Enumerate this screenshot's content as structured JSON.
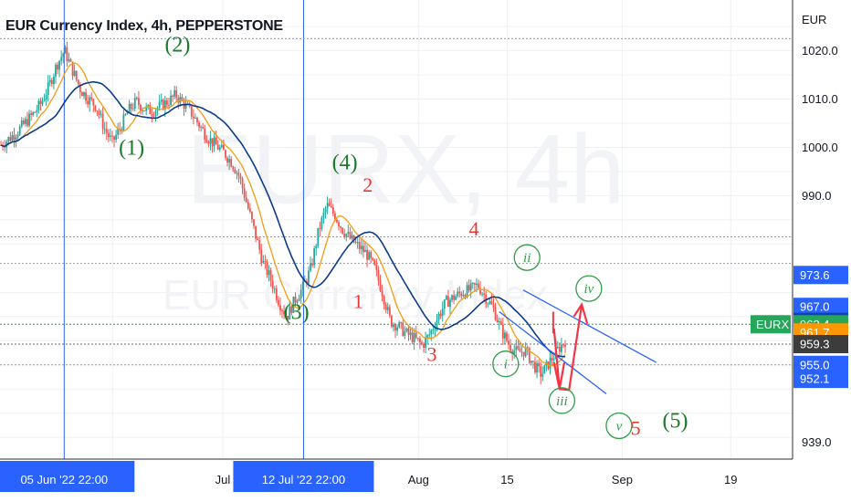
{
  "chart_data": {
    "type": "candlestick",
    "title": "EUR Currency Index, 4h, PEPPERSTONE",
    "watermark": "EURX, 4h",
    "watermark_sub": "EUR Currency Index",
    "currency": "EUR",
    "ylim": [
      935.5,
      1030.5
    ],
    "y_ticks": [
      1020.0,
      1010.0,
      1000.0,
      990.0,
      939.0
    ],
    "y_tick_labels": [
      "1020.0",
      "1010.0",
      "1000.0",
      "990.0",
      "939.0"
    ],
    "x_ticks": [
      {
        "label": "5",
        "t": 0.142
      },
      {
        "label": "Jul",
        "t": 0.281
      },
      {
        "label": "Aug",
        "t": 0.528
      },
      {
        "label": "15",
        "t": 0.64
      },
      {
        "label": "Sep",
        "t": 0.785
      },
      {
        "label": "19",
        "t": 0.922
      }
    ],
    "crosshair_x": [
      {
        "label": "05 Jun '22   22:00",
        "t": 0.081
      },
      {
        "label": "12 Jul '22   22:00",
        "t": 0.383
      }
    ],
    "price_badges": [
      {
        "value": "973.6",
        "price": 973.6,
        "color": "#2962ff"
      },
      {
        "value": "967.0",
        "price": 967.0,
        "color": "#2962ff"
      },
      {
        "value": "963.9",
        "price": 963.9,
        "color": "#0d47a1"
      },
      {
        "value": "963.4",
        "price": 963.4,
        "color": "#26a65b",
        "tag": "EURX"
      },
      {
        "value": "961.7",
        "price": 961.7,
        "color": "#ff9800"
      },
      {
        "value": "959.3",
        "price": 959.3,
        "color": "#3c3c3c"
      },
      {
        "value": "955.0",
        "price": 955.0,
        "color": "#2962ff"
      },
      {
        "value": "952.1",
        "price": 952.1,
        "color": "#2962ff"
      }
    ],
    "close_series": [
      1000.5,
      1001.8,
      1003.2,
      1005.0,
      1006.8,
      1009.0,
      1012.5,
      1017.0,
      1020.0,
      1016.0,
      1012.0,
      1010.0,
      1008.5,
      1004.0,
      1001.0,
      1004.0,
      1007.5,
      1009.5,
      1008.0,
      1007.5,
      1008.5,
      1009.5,
      1010.8,
      1009.0,
      1007.0,
      1004.5,
      1002.0,
      1000.5,
      999.0,
      997.0,
      994.0,
      988.0,
      982.0,
      976.0,
      972.5,
      968.0,
      965.0,
      968.5,
      971.0,
      975.0,
      983.0,
      988.0,
      986.0,
      983.0,
      981.0,
      979.5,
      978.0,
      975.0,
      970.0,
      964.0,
      963.0,
      961.5,
      960.5,
      959.0,
      961.5,
      965.0,
      968.0,
      969.0,
      970.0,
      970.5,
      971.5,
      969.0,
      966.5,
      962.0,
      959.0,
      957.5,
      958.0,
      955.0,
      953.0,
      955.5,
      958.0,
      960.0
    ],
    "annotations_green": [
      {
        "text": "(2)",
        "price": 1019.8,
        "t": 0.224
      },
      {
        "text": "(1)",
        "price": 998.5,
        "t": 0.166
      },
      {
        "text": "(4)",
        "price": 995.5,
        "t": 0.435
      },
      {
        "text": "(3)",
        "price": 964.5,
        "t": 0.374
      },
      {
        "text": "(5)",
        "price": 942.0,
        "t": 0.852
      }
    ],
    "annotations_red": [
      {
        "text": "2",
        "price": 990.8,
        "t": 0.464
      },
      {
        "text": "1",
        "price": 966.8,
        "t": 0.452
      },
      {
        "text": "4",
        "price": 981.8,
        "t": 0.598
      },
      {
        "text": "3",
        "price": 955.8,
        "t": 0.545
      },
      {
        "text": "5",
        "price": 940.5,
        "t": 0.802
      }
    ],
    "annotations_circled": [
      {
        "text": "ii",
        "price": 977.2,
        "t": 0.665
      },
      {
        "text": "iv",
        "price": 970.8,
        "t": 0.743
      },
      {
        "text": "i",
        "price": 955.2,
        "t": 0.638
      },
      {
        "text": "iii",
        "price": 947.6,
        "t": 0.709
      },
      {
        "text": "v",
        "price": 942.4,
        "t": 0.781
      }
    ],
    "channel": [
      {
        "t1": 0.66,
        "p1": 970.5,
        "t2": 0.828,
        "p2": 955.5
      },
      {
        "t1": 0.63,
        "p1": 966.0,
        "t2": 0.765,
        "p2": 949.0
      }
    ]
  }
}
